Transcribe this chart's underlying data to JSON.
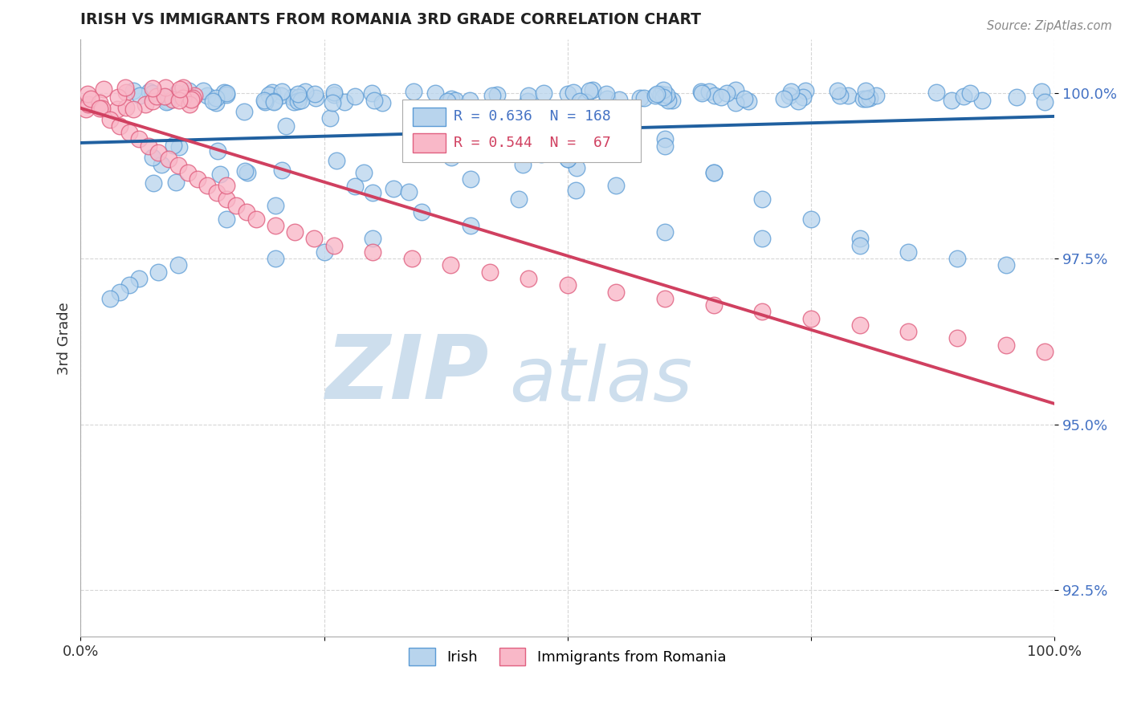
{
  "title": "IRISH VS IMMIGRANTS FROM ROMANIA 3RD GRADE CORRELATION CHART",
  "source_text": "Source: ZipAtlas.com",
  "ylabel": "3rd Grade",
  "xmin": 0.0,
  "xmax": 1.0,
  "ymin": 0.918,
  "ymax": 1.008,
  "yticks": [
    0.925,
    0.95,
    0.975,
    1.0
  ],
  "ytick_labels": [
    "92.5%",
    "95.0%",
    "97.5%",
    "100.0%"
  ],
  "legend_r_blue": "R = 0.636",
  "legend_n_blue": "N = 168",
  "legend_r_pink": "R = 0.544",
  "legend_n_pink": "N =  67",
  "blue_color": "#b8d4ed",
  "blue_edge": "#5b9bd5",
  "pink_color": "#f9b8c8",
  "pink_edge": "#e06080",
  "trend_blue": "#2060a0",
  "trend_pink": "#d04060",
  "watermark_zip": "ZIP",
  "watermark_atlas": "atlas",
  "watermark_color": "#cddeed"
}
